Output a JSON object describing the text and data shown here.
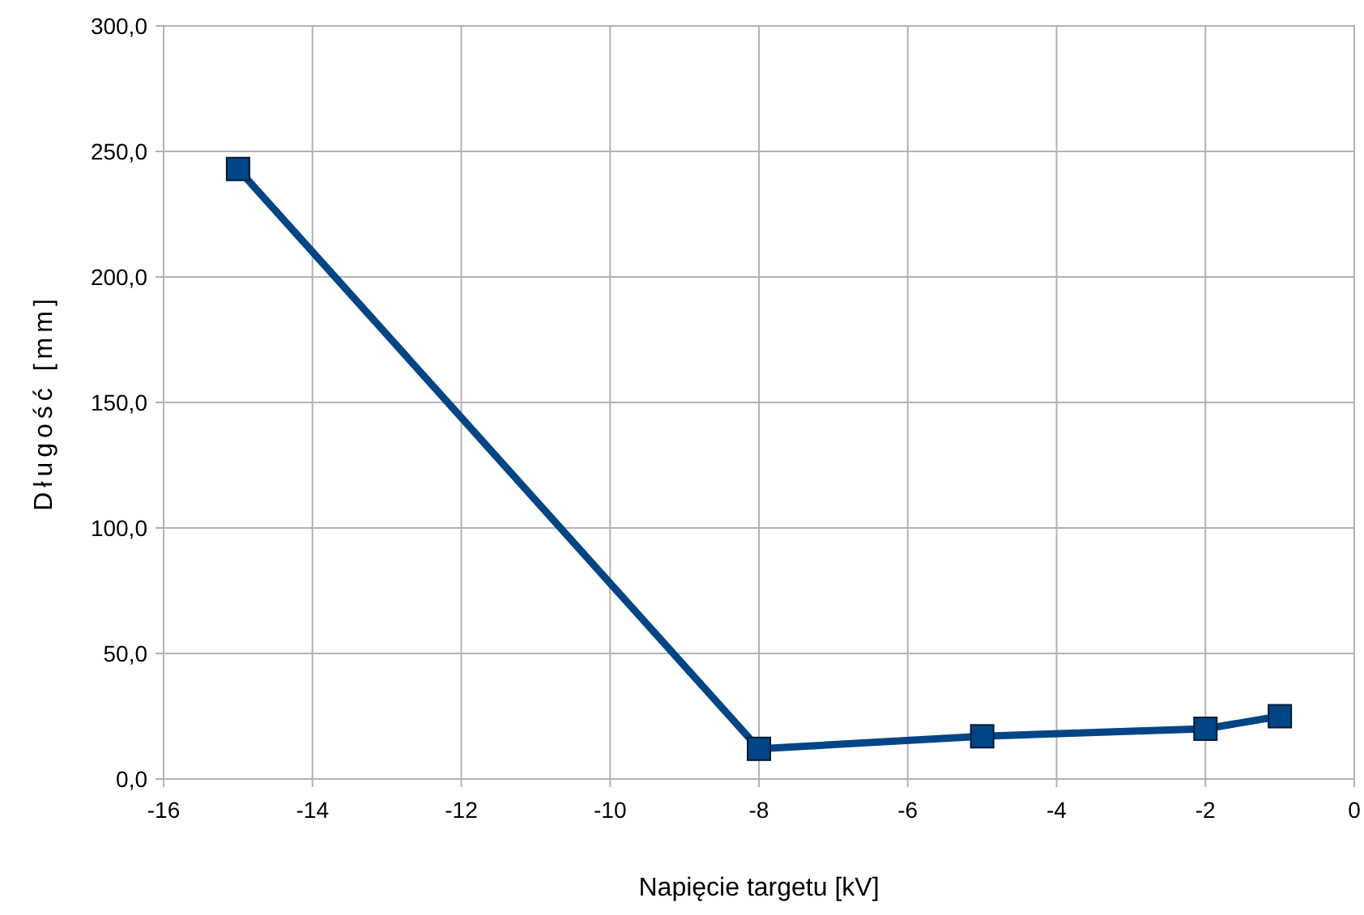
{
  "chart_data": {
    "type": "line",
    "xlabel": "Napięcie targetu [kV]",
    "ylabel": "Długość [mm]",
    "x": [
      -15,
      -8,
      -5,
      -2,
      -1
    ],
    "series": [
      {
        "color": "#004586",
        "values": [
          243,
          12,
          17,
          20,
          25
        ]
      }
    ],
    "xlim": [
      -16,
      0
    ],
    "xticks": [
      -16,
      -14,
      -12,
      -10,
      -8,
      -6,
      -4,
      -2,
      0
    ],
    "ylim": [
      0,
      300
    ],
    "yticks": [
      {
        "value": 0,
        "label": "0,0"
      },
      {
        "value": 50,
        "label": "50,0"
      },
      {
        "value": 100,
        "label": "100,0"
      },
      {
        "value": 150,
        "label": "150,0"
      },
      {
        "value": 200,
        "label": "200,0"
      },
      {
        "value": 250,
        "label": "250,0"
      },
      {
        "value": 300,
        "label": "300,0"
      }
    ],
    "grid": true,
    "marker": "square",
    "line_style": "solid"
  }
}
